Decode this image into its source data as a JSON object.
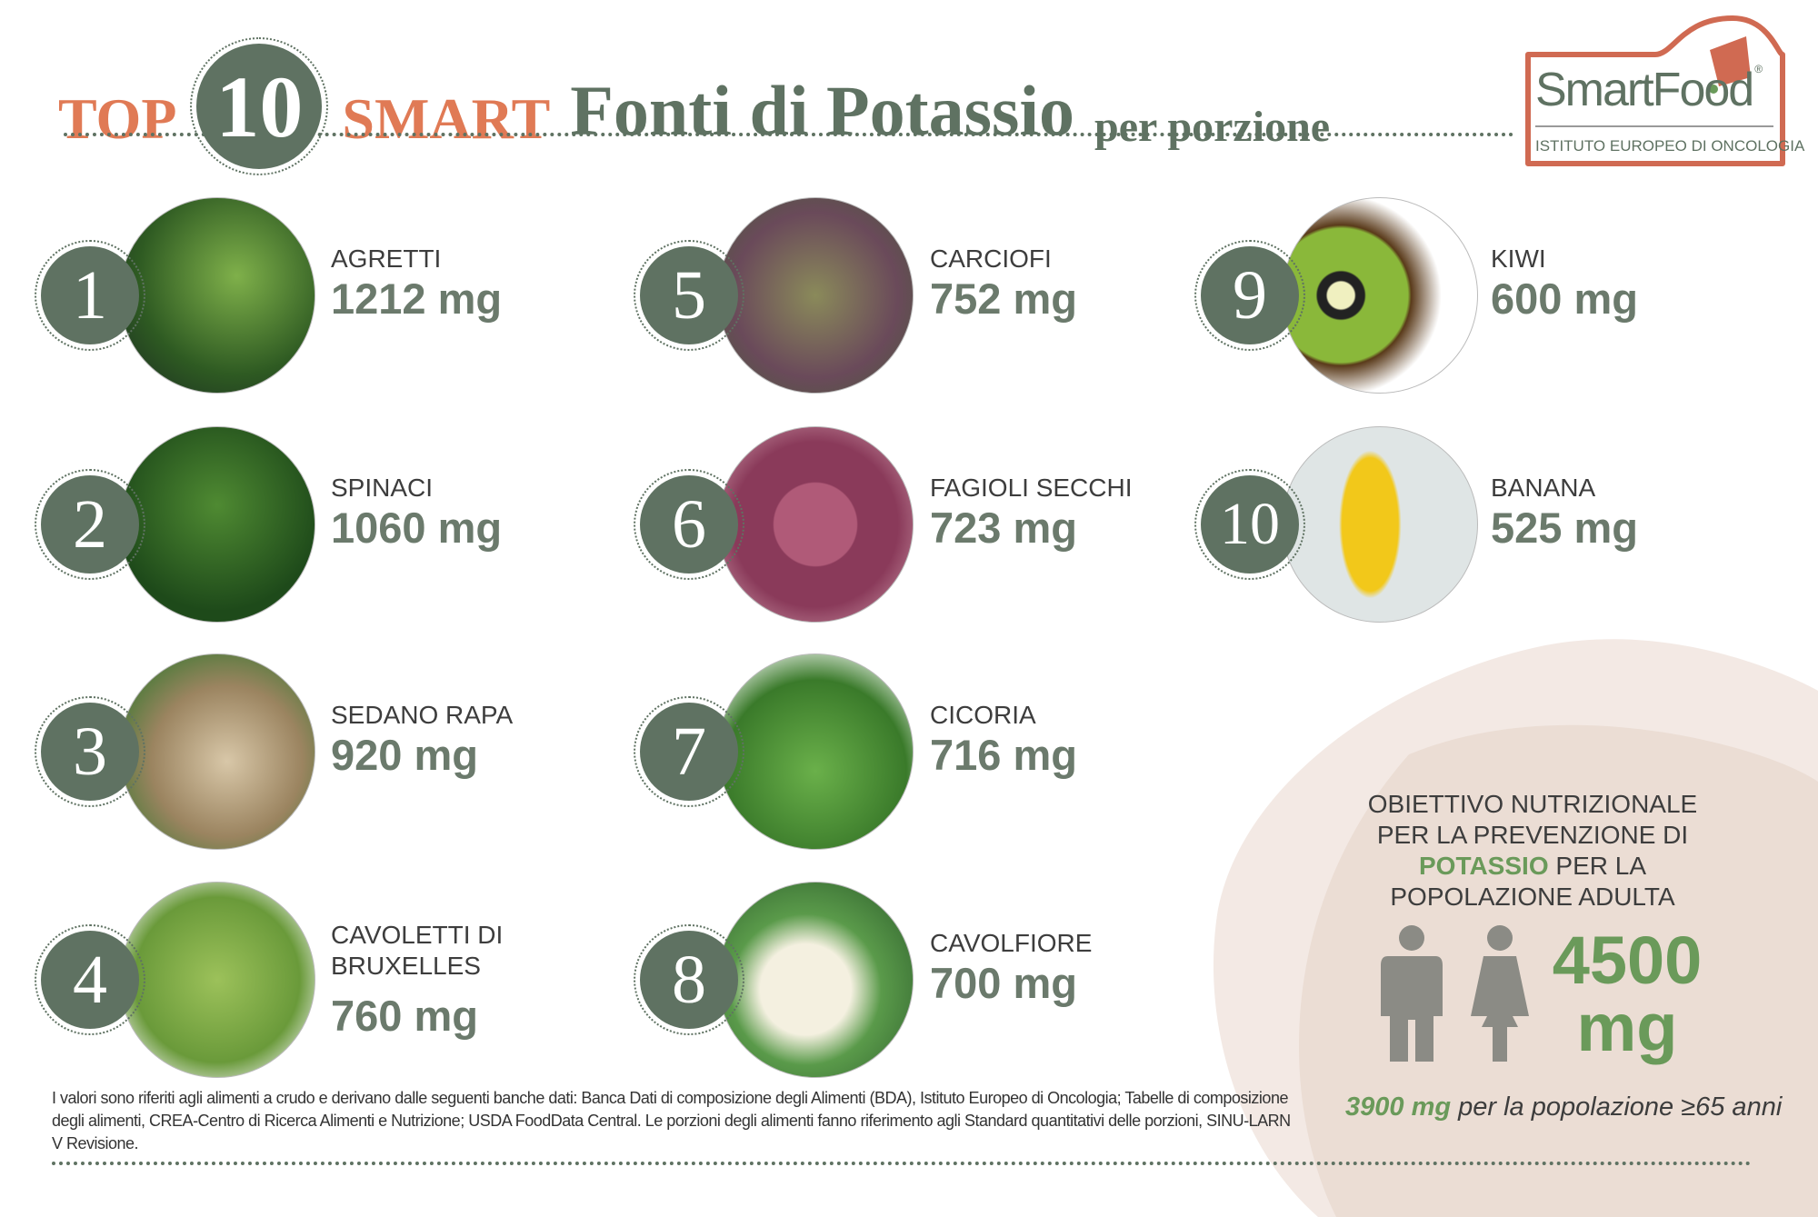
{
  "header": {
    "top": "TOP",
    "number": "10",
    "smart": "SMART",
    "title": "Fonti di Potassio",
    "subtitle": "per porzione"
  },
  "logo": {
    "name": "SmartFood",
    "registered": "®",
    "institute": "ISTITUTO EUROPEO DI ONCOLOGIA"
  },
  "colors": {
    "orange": "#e07a55",
    "green": "#5f7262",
    "accent_green": "#6a9a5a",
    "panel": "#eedfd8"
  },
  "items": [
    {
      "rank": "1",
      "name": "AGRETTI",
      "value": "1212 mg",
      "photo": "agretti-photo"
    },
    {
      "rank": "2",
      "name": "SPINACI",
      "value": "1060 mg",
      "photo": "spinach-photo"
    },
    {
      "rank": "3",
      "name": "SEDANO RAPA",
      "value": "920 mg",
      "photo": "celeriac-photo"
    },
    {
      "rank": "4",
      "name": "CAVOLETTI DI BRUXELLES",
      "value": "760 mg",
      "photo": "brussels-sprouts-photo"
    },
    {
      "rank": "5",
      "name": "CARCIOFI",
      "value": "752 mg",
      "photo": "artichoke-photo"
    },
    {
      "rank": "6",
      "name": "FAGIOLI SECCHI",
      "value": "723 mg",
      "photo": "beans-photo"
    },
    {
      "rank": "7",
      "name": "CICORIA",
      "value": "716 mg",
      "photo": "chicory-photo"
    },
    {
      "rank": "8",
      "name": "CAVOLFIORE",
      "value": "700 mg",
      "photo": "cauliflower-photo"
    },
    {
      "rank": "9",
      "name": "KIWI",
      "value": "600 mg",
      "photo": "kiwi-photo"
    },
    {
      "rank": "10",
      "name": "BANANA",
      "value": "525 mg",
      "photo": "banana-photo"
    }
  ],
  "goal": {
    "line1": "OBIETTIVO NUTRIZIONALE",
    "line2": "PER LA PREVENZIONE DI",
    "highlight": "POTASSIO",
    "line3_rest": " PER LA",
    "line4": "POPOLAZIONE ADULTA",
    "amount": "4500",
    "unit": "mg",
    "elderly_value": "3900 mg",
    "elderly_text": " per la popolazione ≥65 anni"
  },
  "footnote": "I valori sono riferiti agli alimenti a crudo e derivano dalle seguenti banche dati: Banca Dati di composizione degli Alimenti (BDA), Istituto Europeo di Oncologia; Tabelle di composizione degli alimenti, CREA-Centro di Ricerca Alimenti e Nutrizione; USDA FoodData Central. Le porzioni degli alimenti fanno riferimento agli Standard quantitativi delle porzioni, SINU-LARN V Revisione."
}
